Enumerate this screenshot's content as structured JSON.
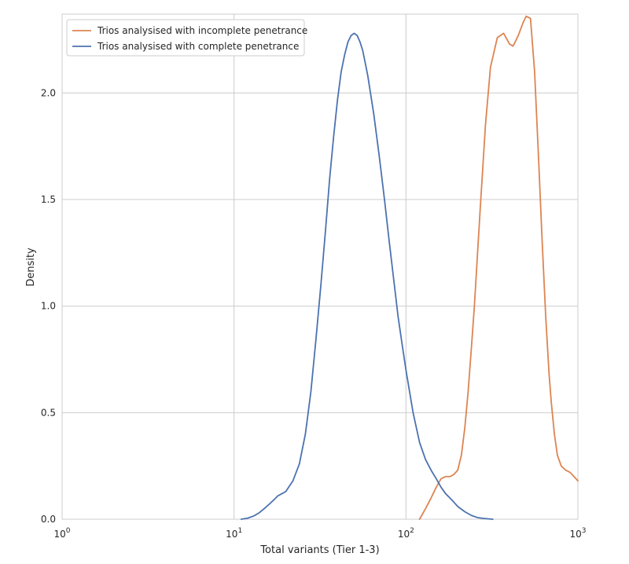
{
  "chart_data": {
    "type": "line",
    "title": "",
    "xlabel": "Total variants (Tier 1-3)",
    "ylabel": "Density",
    "xscale": "log",
    "xlim": [
      1,
      1000
    ],
    "ylim": [
      0,
      2.37
    ],
    "x_ticks": [
      1,
      10,
      100,
      1000
    ],
    "x_tick_labels": [
      {
        "base": "10",
        "exp": "0"
      },
      {
        "base": "10",
        "exp": "1"
      },
      {
        "base": "10",
        "exp": "2"
      },
      {
        "base": "10",
        "exp": "3"
      }
    ],
    "y_ticks": [
      0.0,
      0.5,
      1.0,
      1.5,
      2.0
    ],
    "y_tick_labels": [
      "0.0",
      "0.5",
      "1.0",
      "1.5",
      "2.0"
    ],
    "grid": true,
    "legend_position": "top-left",
    "series": [
      {
        "name": "Trios analysised with incomplete penetrance",
        "color": "#dd8452",
        "x": [
          120,
          130,
          140,
          150,
          160,
          170,
          180,
          190,
          200,
          210,
          220,
          230,
          240,
          250,
          270,
          290,
          310,
          340,
          370,
          400,
          420,
          450,
          480,
          500,
          530,
          560,
          590,
          620,
          650,
          680,
          700,
          730,
          760,
          800,
          850,
          900,
          950,
          1000
        ],
        "y": [
          0.0,
          0.05,
          0.1,
          0.15,
          0.19,
          0.2,
          0.2,
          0.21,
          0.23,
          0.3,
          0.43,
          0.6,
          0.8,
          1.0,
          1.45,
          1.85,
          2.12,
          2.26,
          2.28,
          2.23,
          2.22,
          2.27,
          2.33,
          2.36,
          2.35,
          2.1,
          1.7,
          1.3,
          0.95,
          0.68,
          0.55,
          0.4,
          0.3,
          0.25,
          0.23,
          0.22,
          0.2,
          0.18
        ]
      },
      {
        "name": "Trios analysised with complete penetrance",
        "color": "#4c72b0",
        "x": [
          11,
          12,
          13,
          14,
          15,
          16,
          17,
          18,
          19,
          20,
          22,
          24,
          26,
          28,
          30,
          32,
          34,
          36,
          38,
          40,
          42,
          44,
          46,
          48,
          50,
          52,
          54,
          56,
          58,
          60,
          65,
          70,
          75,
          80,
          85,
          90,
          95,
          100,
          110,
          120,
          130,
          140,
          150,
          160,
          170,
          180,
          190,
          200,
          220,
          240,
          260,
          280,
          300,
          320
        ],
        "y": [
          0.0,
          0.005,
          0.015,
          0.03,
          0.05,
          0.07,
          0.09,
          0.11,
          0.12,
          0.13,
          0.18,
          0.26,
          0.4,
          0.6,
          0.85,
          1.1,
          1.35,
          1.6,
          1.8,
          1.97,
          2.1,
          2.18,
          2.24,
          2.27,
          2.28,
          2.27,
          2.24,
          2.2,
          2.14,
          2.08,
          1.9,
          1.7,
          1.5,
          1.3,
          1.12,
          0.95,
          0.82,
          0.7,
          0.5,
          0.36,
          0.28,
          0.23,
          0.19,
          0.15,
          0.12,
          0.1,
          0.08,
          0.06,
          0.035,
          0.018,
          0.008,
          0.004,
          0.002,
          0.0
        ]
      }
    ]
  }
}
